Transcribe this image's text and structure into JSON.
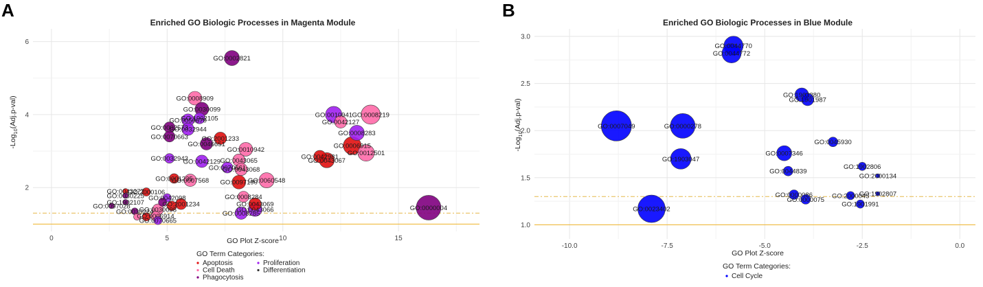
{
  "chart_data": [
    {
      "type": "scatter",
      "panel": "A",
      "title": "Enriched GO Biologic Processes in Magenta Module",
      "xlabel": "GO Plot Z-score",
      "ylabel": "-Log10(Adj.p-val)",
      "xlim": [
        -0.8,
        18.5
      ],
      "ylim": [
        0.8,
        6.35
      ],
      "xticks": [
        0,
        5,
        10,
        15
      ],
      "yticks": [
        2,
        4,
        6
      ],
      "hlines": [
        {
          "y": 1.3,
          "style": "dashed",
          "color": "#e6b84a"
        },
        {
          "y": 1.0,
          "style": "solid",
          "color": "#f0b429"
        }
      ],
      "legend": {
        "title": "GO Term Categories:",
        "items": [
          {
            "label": "Apoptosis",
            "color": "#e11010"
          },
          {
            "label": "Cell Death",
            "color": "#ff6aa8"
          },
          {
            "label": "Phagocytosis",
            "color": "#800080"
          },
          {
            "label": "Proliferation",
            "color": "#a020f0"
          },
          {
            "label": "Differentiation",
            "color": "#333333"
          }
        ]
      },
      "points": [
        {
          "x": 7.8,
          "y": 5.55,
          "size": 11,
          "category": "Phagocytosis",
          "label": "GO:0002821"
        },
        {
          "x": 6.2,
          "y": 4.45,
          "size": 10,
          "category": "Cell Death",
          "label": "GO:0008909"
        },
        {
          "x": 6.5,
          "y": 4.15,
          "size": 10,
          "category": "Phagocytosis",
          "label": "GO:0030099"
        },
        {
          "x": 5.9,
          "y": 3.85,
          "size": 9,
          "category": "Proliferation",
          "label": "GO:0050670"
        },
        {
          "x": 6.4,
          "y": 3.9,
          "size": 8,
          "category": "Proliferation",
          "label": "GO:1902105"
        },
        {
          "x": 5.1,
          "y": 3.65,
          "size": 8,
          "category": "Phagocytosis",
          "label": "GO:0002573"
        },
        {
          "x": 5.9,
          "y": 3.6,
          "size": 9,
          "category": "Proliferation",
          "label": "GO:0032944"
        },
        {
          "x": 7.3,
          "y": 3.35,
          "size": 9,
          "category": "Apoptosis",
          "label": "GO:2001233"
        },
        {
          "x": 5.1,
          "y": 3.4,
          "size": 8,
          "category": "Phagocytosis",
          "label": "GO:0070663"
        },
        {
          "x": 6.7,
          "y": 3.2,
          "size": 9,
          "category": "Phagocytosis",
          "label": "GO:0046651"
        },
        {
          "x": 8.4,
          "y": 3.05,
          "size": 10,
          "category": "Cell Death",
          "label": "GO:0010942"
        },
        {
          "x": 5.1,
          "y": 2.8,
          "size": 7,
          "category": "Proliferation",
          "label": "GO:0032943"
        },
        {
          "x": 8.1,
          "y": 2.75,
          "size": 9,
          "category": "Cell Death",
          "label": "GO:0043065"
        },
        {
          "x": 6.5,
          "y": 2.72,
          "size": 9,
          "category": "Proliferation",
          "label": "GO:0042129"
        },
        {
          "x": 7.6,
          "y": 2.55,
          "size": 8,
          "category": "Proliferation",
          "label": "GO:0070661"
        },
        {
          "x": 8.2,
          "y": 2.5,
          "size": 9,
          "category": "Cell Death",
          "label": "GO:0043068"
        },
        {
          "x": 5.3,
          "y": 2.25,
          "size": 7,
          "category": "Apoptosis",
          "label": "GO:0001235"
        },
        {
          "x": 6.0,
          "y": 2.2,
          "size": 9,
          "category": "Cell Death",
          "label": "GO:0007568"
        },
        {
          "x": 9.3,
          "y": 2.2,
          "size": 11,
          "category": "Cell Death",
          "label": "GO:0060548"
        },
        {
          "x": 8.1,
          "y": 2.15,
          "size": 10,
          "category": "Apoptosis",
          "label": "GO:0097190"
        },
        {
          "x": 3.2,
          "y": 1.9,
          "size": 4,
          "category": "Apoptosis",
          "label": "GO:0043277"
        },
        {
          "x": 4.1,
          "y": 1.88,
          "size": 6,
          "category": "Apoptosis",
          "label": "GO:2000106"
        },
        {
          "x": 3.2,
          "y": 1.78,
          "size": 4,
          "category": "Phagocytosis",
          "label": "GO:0030225"
        },
        {
          "x": 5.0,
          "y": 1.72,
          "size": 6,
          "category": "Proliferation",
          "label": "GO:0042098"
        },
        {
          "x": 8.3,
          "y": 1.75,
          "size": 8,
          "category": "Cell Death",
          "label": "GO:0008284"
        },
        {
          "x": 3.2,
          "y": 1.6,
          "size": 4,
          "category": "Phagocytosis",
          "label": "GO:1902107"
        },
        {
          "x": 5.6,
          "y": 1.55,
          "size": 8,
          "category": "Apoptosis",
          "label": "GO:2001234"
        },
        {
          "x": 8.8,
          "y": 1.55,
          "size": 9,
          "category": "Apoptosis",
          "label": "GO:0043069"
        },
        {
          "x": 2.6,
          "y": 1.5,
          "size": 4,
          "category": "Phagocytosis",
          "label": "GO:0097028"
        },
        {
          "x": 3.6,
          "y": 1.35,
          "size": 5,
          "category": "Phagocytosis",
          "label": "GO:0030224"
        },
        {
          "x": 4.6,
          "y": 1.4,
          "size": 8,
          "category": "Cell Death",
          "label": "GO:0030098"
        },
        {
          "x": 8.8,
          "y": 1.4,
          "size": 10,
          "category": "Proliferation",
          "label": "GO:0043066"
        },
        {
          "x": 4.5,
          "y": 1.22,
          "size": 7,
          "category": "Cell Death",
          "label": "GO:0006914"
        },
        {
          "x": 8.2,
          "y": 1.3,
          "size": 9,
          "category": "Proliferation",
          "label": "GO:0008285"
        },
        {
          "x": 4.6,
          "y": 1.1,
          "size": 6,
          "category": "Proliferation",
          "label": "GO:0070665"
        },
        {
          "x": 12.2,
          "y": 4.0,
          "size": 12,
          "category": "Proliferation",
          "label": "GO:0010941"
        },
        {
          "x": 13.8,
          "y": 4.0,
          "size": 14,
          "category": "Cell Death",
          "label": "GO:0008219"
        },
        {
          "x": 12.5,
          "y": 3.8,
          "size": 9,
          "category": "Cell Death",
          "label": "GO:0042127"
        },
        {
          "x": 13.2,
          "y": 3.5,
          "size": 11,
          "category": "Proliferation",
          "label": "GO:0008283"
        },
        {
          "x": 13.0,
          "y": 3.15,
          "size": 13,
          "category": "Apoptosis",
          "label": "GO:0006915"
        },
        {
          "x": 11.6,
          "y": 2.85,
          "size": 9,
          "category": "Apoptosis",
          "label": "GO:0042981"
        },
        {
          "x": 13.6,
          "y": 2.95,
          "size": 12,
          "category": "Cell Death",
          "label": "GO:0012501"
        },
        {
          "x": 11.9,
          "y": 2.75,
          "size": 11,
          "category": "Apoptosis",
          "label": "GO:0043067"
        },
        {
          "x": 16.3,
          "y": 1.45,
          "size": 18,
          "category": "Phagocytosis",
          "label": "GO:0000004"
        },
        {
          "x": 3.7,
          "y": 1.2,
          "size": 5,
          "category": "Cell Death",
          "label": ""
        },
        {
          "x": 4.1,
          "y": 1.2,
          "size": 6,
          "category": "Apoptosis",
          "label": ""
        },
        {
          "x": 5.2,
          "y": 1.5,
          "size": 7,
          "category": "Apoptosis",
          "label": ""
        },
        {
          "x": 4.8,
          "y": 1.6,
          "size": 6,
          "category": "Phagocytosis",
          "label": ""
        }
      ]
    },
    {
      "type": "scatter",
      "panel": "B",
      "title": "Enriched GO Biologic Processes in Blue Module",
      "xlabel": "GO Plot Z-score",
      "ylabel": "-Log10(Adj.p-val)",
      "xlim": [
        -10.9,
        0.4
      ],
      "ylim": [
        0.85,
        3.08
      ],
      "xticks": [
        -10.0,
        -7.5,
        -5.0,
        -2.5,
        0.0
      ],
      "yticks": [
        1.0,
        1.5,
        2.0,
        2.5,
        3.0
      ],
      "hlines": [
        {
          "y": 1.3,
          "style": "dashed",
          "color": "#e6b84a"
        },
        {
          "y": 1.0,
          "style": "solid",
          "color": "#f0b429"
        }
      ],
      "legend": {
        "title": "GO Term Categories:",
        "items": [
          {
            "label": "Cell Cycle",
            "color": "#0000ff"
          }
        ]
      },
      "points": [
        {
          "x": -5.8,
          "y": 2.9,
          "size": 14,
          "category": "Cell Cycle",
          "label": "GO:0044770"
        },
        {
          "x": -5.85,
          "y": 2.82,
          "size": 14,
          "category": "Cell Cycle",
          "label": "GO:0044772"
        },
        {
          "x": -4.05,
          "y": 2.38,
          "size": 10,
          "category": "Cell Cycle",
          "label": "GO:1903380"
        },
        {
          "x": -3.9,
          "y": 2.33,
          "size": 9,
          "category": "Cell Cycle",
          "label": "GO:1901987"
        },
        {
          "x": -8.8,
          "y": 2.05,
          "size": 22,
          "category": "Cell Cycle",
          "label": "GO:0007049"
        },
        {
          "x": -7.1,
          "y": 2.05,
          "size": 18,
          "category": "Cell Cycle",
          "label": "GO:0000278"
        },
        {
          "x": -3.25,
          "y": 1.88,
          "size": 7,
          "category": "Cell Cycle",
          "label": "GO:0045930"
        },
        {
          "x": -4.5,
          "y": 1.76,
          "size": 11,
          "category": "Cell Cycle",
          "label": "GO:0007346"
        },
        {
          "x": -7.15,
          "y": 1.7,
          "size": 15,
          "category": "Cell Cycle",
          "label": "GO:1903047"
        },
        {
          "x": -2.5,
          "y": 1.62,
          "size": 6,
          "category": "Cell Cycle",
          "label": "GO:1902806"
        },
        {
          "x": -4.4,
          "y": 1.57,
          "size": 7,
          "category": "Cell Cycle",
          "label": "GO:0044839"
        },
        {
          "x": -2.1,
          "y": 1.52,
          "size": 3,
          "category": "Cell Cycle",
          "label": "GO:2000134"
        },
        {
          "x": -2.1,
          "y": 1.33,
          "size": 3,
          "category": "Cell Cycle",
          "label": "GO:1902807"
        },
        {
          "x": -4.25,
          "y": 1.32,
          "size": 7,
          "category": "Cell Cycle",
          "label": "GO:0000086"
        },
        {
          "x": -2.8,
          "y": 1.31,
          "size": 6,
          "category": "Cell Cycle",
          "label": "GO:2000045"
        },
        {
          "x": -3.95,
          "y": 1.27,
          "size": 7,
          "category": "Cell Cycle",
          "label": "GO:0000075"
        },
        {
          "x": -2.55,
          "y": 1.22,
          "size": 6,
          "category": "Cell Cycle",
          "label": "GO:1901991"
        },
        {
          "x": -7.9,
          "y": 1.17,
          "size": 20,
          "category": "Cell Cycle",
          "label": "GO:0023402"
        }
      ]
    }
  ]
}
